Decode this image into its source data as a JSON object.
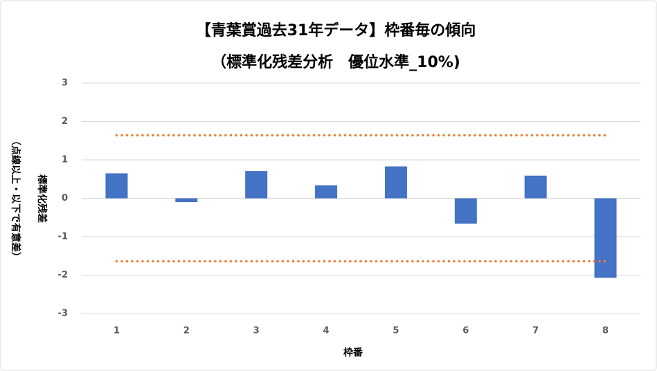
{
  "chart_data": {
    "type": "bar",
    "title": [
      "【青葉賞過去31年データ】枠番毎の傾向",
      "（標準化残差分析　優位水準_10%)"
    ],
    "xlabel": "枠番",
    "ylabel": [
      "標準化残差",
      "（点線以上・以下で有意差）"
    ],
    "categories": [
      "1",
      "2",
      "3",
      "4",
      "5",
      "6",
      "7",
      "8"
    ],
    "values": [
      0.65,
      -0.1,
      0.71,
      0.34,
      0.83,
      -0.66,
      0.59,
      -2.07
    ],
    "color": "#4472c4",
    "reference_lines": {
      "values": [
        1.64,
        -1.64
      ],
      "color": "#ed7d31"
    },
    "ylim": [
      -3,
      3
    ],
    "yticks": [
      -3,
      -2,
      -1,
      0,
      1,
      2,
      3
    ],
    "grid": true
  }
}
